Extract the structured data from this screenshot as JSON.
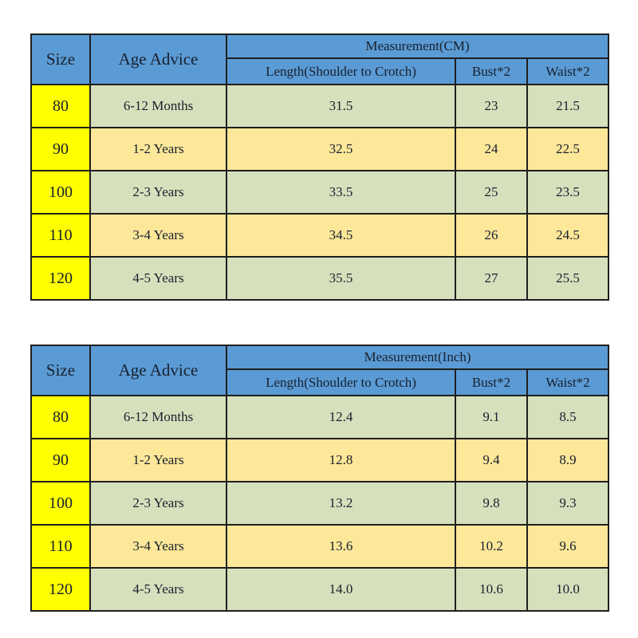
{
  "colors": {
    "header_blue": "#5B9BD5",
    "size_column_yellow": "#FFFF00",
    "row_green": "#D6E0BC",
    "row_tan": "#FDE799",
    "grid_border": "#1f1f1f",
    "text": "#18202e",
    "page_background": "#ffffff"
  },
  "chart_data": [
    {
      "type": "table",
      "title": "Measurement(CM)",
      "headers": {
        "size": "Size",
        "age": "Age Advice",
        "group": "Measurement(CM)",
        "len": "Length(Shoulder to Crotch)",
        "bust": "Bust*2",
        "waist": "Waist*2"
      },
      "rows": [
        [
          "80",
          "6-12 Months",
          "31.5",
          "23",
          "21.5"
        ],
        [
          "90",
          "1-2 Years",
          "32.5",
          "24",
          "22.5"
        ],
        [
          "100",
          "2-3 Years",
          "33.5",
          "25",
          "23.5"
        ],
        [
          "110",
          "3-4 Years",
          "34.5",
          "26",
          "24.5"
        ],
        [
          "120",
          "4-5 Years",
          "35.5",
          "27",
          "25.5"
        ]
      ]
    },
    {
      "type": "table",
      "title": "Measurement(Inch)",
      "headers": {
        "size": "Size",
        "age": "Age Advice",
        "group": "Measurement(Inch)",
        "len": "Length(Shoulder to Crotch)",
        "bust": "Bust*2",
        "waist": "Waist*2"
      },
      "rows": [
        [
          "80",
          "6-12 Months",
          "12.4",
          "9.1",
          "8.5"
        ],
        [
          "90",
          "1-2 Years",
          "12.8",
          "9.4",
          "8.9"
        ],
        [
          "100",
          "2-3 Years",
          "13.2",
          "9.8",
          "9.3"
        ],
        [
          "110",
          "3-4 Years",
          "13.6",
          "10.2",
          "9.6"
        ],
        [
          "120",
          "4-5 Years",
          "14.0",
          "10.6",
          "10.0"
        ]
      ]
    }
  ]
}
